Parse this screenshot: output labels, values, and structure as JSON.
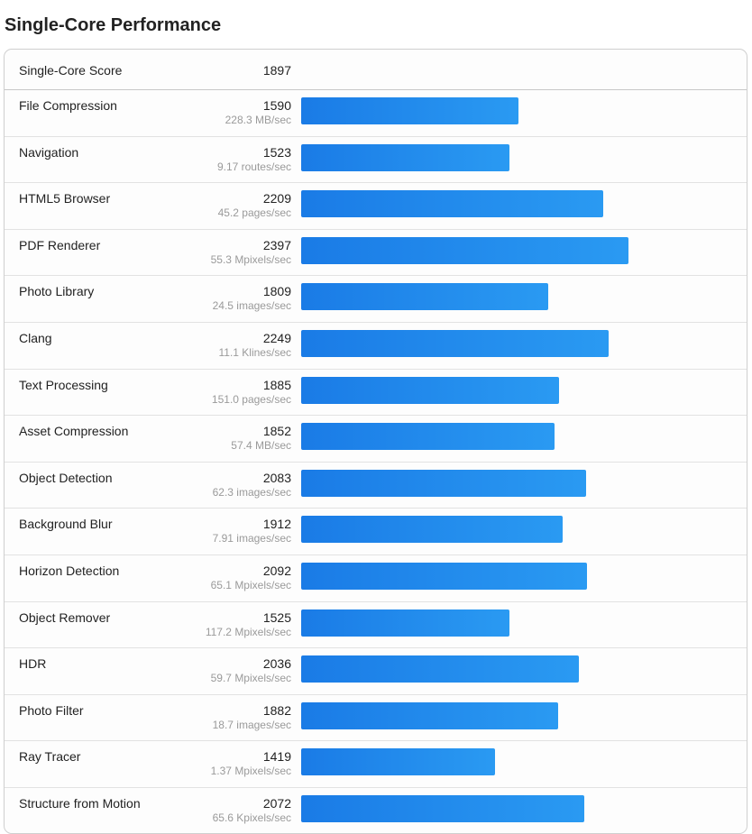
{
  "title": "Single-Core Performance",
  "score": {
    "label": "Single-Core Score",
    "value": "1897"
  },
  "bar_color": "#1f86ea",
  "bar_scale_max": 3300,
  "rows": [
    {
      "name": "File Compression",
      "score": 1590,
      "rate": "228.3 MB/sec"
    },
    {
      "name": "Navigation",
      "score": 1523,
      "rate": "9.17 routes/sec"
    },
    {
      "name": "HTML5 Browser",
      "score": 2209,
      "rate": "45.2 pages/sec"
    },
    {
      "name": "PDF Renderer",
      "score": 2397,
      "rate": "55.3 Mpixels/sec"
    },
    {
      "name": "Photo Library",
      "score": 1809,
      "rate": "24.5 images/sec"
    },
    {
      "name": "Clang",
      "score": 2249,
      "rate": "11.1 Klines/sec"
    },
    {
      "name": "Text Processing",
      "score": 1885,
      "rate": "151.0 pages/sec"
    },
    {
      "name": "Asset Compression",
      "score": 1852,
      "rate": "57.4 MB/sec"
    },
    {
      "name": "Object Detection",
      "score": 2083,
      "rate": "62.3 images/sec"
    },
    {
      "name": "Background Blur",
      "score": 1912,
      "rate": "7.91 images/sec"
    },
    {
      "name": "Horizon Detection",
      "score": 2092,
      "rate": "65.1 Mpixels/sec"
    },
    {
      "name": "Object Remover",
      "score": 1525,
      "rate": "117.2 Mpixels/sec"
    },
    {
      "name": "HDR",
      "score": 2036,
      "rate": "59.7 Mpixels/sec"
    },
    {
      "name": "Photo Filter",
      "score": 1882,
      "rate": "18.7 images/sec"
    },
    {
      "name": "Ray Tracer",
      "score": 1419,
      "rate": "1.37 Mpixels/sec"
    },
    {
      "name": "Structure from Motion",
      "score": 2072,
      "rate": "65.6 Kpixels/sec"
    }
  ]
}
